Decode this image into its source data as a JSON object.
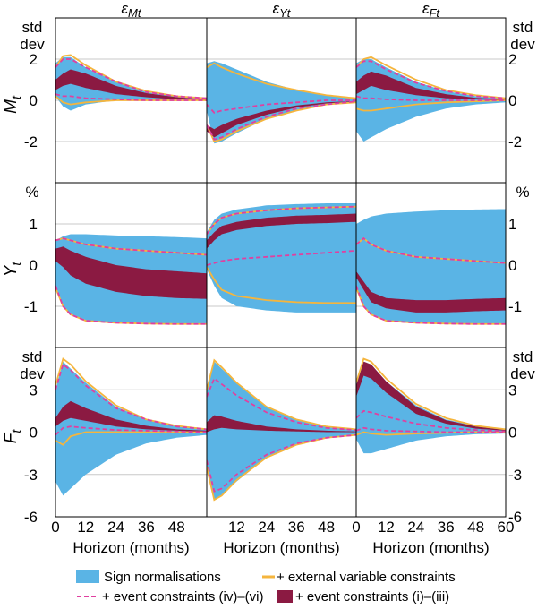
{
  "chart_data": {
    "type": "area",
    "columns": [
      {
        "key": "eM",
        "sym": "ε",
        "sub": "Mt"
      },
      {
        "key": "eY",
        "sym": "ε",
        "sub": "Yt"
      },
      {
        "key": "eF",
        "sym": "ε",
        "sub": "Ft"
      }
    ],
    "rows": [
      {
        "key": "M",
        "sym": "M",
        "sub": "t",
        "unit": [
          "std",
          "dev"
        ],
        "ylim": [
          -4,
          4
        ],
        "ticks": [
          -2,
          0,
          2
        ]
      },
      {
        "key": "Y",
        "sym": "Y",
        "sub": "t",
        "unit": [
          "%"
        ],
        "ylim": [
          -2,
          2
        ],
        "ticks": [
          -1,
          0,
          1
        ]
      },
      {
        "key": "F",
        "sym": "F",
        "sub": "t",
        "unit": [
          "std",
          "dev"
        ],
        "ylim": [
          -6,
          6
        ],
        "ticks": [
          -6,
          -3,
          0,
          3
        ]
      }
    ],
    "xlabel": "Horizon (months)",
    "xlim": [
      0,
      60
    ],
    "xticks": [
      {
        "labels": [
          "0",
          "12",
          "24",
          "36",
          "48"
        ]
      },
      {
        "labels": [
          "12",
          "24",
          "36",
          "48"
        ]
      },
      {
        "labels": [
          "0",
          "12",
          "24",
          "36",
          "48",
          "60"
        ]
      }
    ],
    "colors": {
      "sign": "#5ab4e5",
      "external": "#f5b53d",
      "event_iv_vi": "#e040a0",
      "event_i_iii": "#8b1a42",
      "grid": "#c8c8c8"
    },
    "legend": {
      "sign": "Sign normalisations",
      "external": "+ external variable constraints",
      "event_iv_vi": "+ event constraints (iv)–(vi)",
      "event_i_iii": "+ event constraints (i)–(iii)"
    },
    "series_keys": [
      "sign_lo",
      "sign_hi",
      "ext_lo",
      "ext_hi",
      "ev_lo",
      "ev_hi",
      "dark_lo",
      "dark_hi"
    ],
    "x_nodes": [
      0,
      3,
      6,
      12,
      24,
      36,
      48,
      60
    ],
    "panels": {
      "M_eM": {
        "sign_lo": [
          0.2,
          -0.3,
          -0.5,
          -0.2,
          0,
          0,
          0,
          0
        ],
        "sign_hi": [
          1.8,
          2.1,
          2.1,
          1.6,
          0.9,
          0.4,
          0.2,
          0.1
        ],
        "ext_lo": [
          0.2,
          -0.1,
          -0.2,
          -0.1,
          0,
          0,
          0,
          0
        ],
        "ext_hi": [
          1.6,
          2.15,
          2.2,
          1.7,
          0.9,
          0.45,
          0.2,
          0.1
        ],
        "ev_lo": [
          0.3,
          0.2,
          0.2,
          0.1,
          0.05,
          0,
          0,
          0
        ],
        "ev_hi": [
          1.6,
          2,
          2,
          1.6,
          0.9,
          0.4,
          0.2,
          0.1
        ],
        "dark_lo": [
          0.5,
          0.7,
          0.8,
          0.6,
          0.3,
          0.15,
          0.05,
          0
        ],
        "dark_hi": [
          1,
          1.3,
          1.5,
          1.3,
          0.7,
          0.35,
          0.15,
          0.05
        ]
      },
      "M_eY": {
        "sign_lo": [
          -0.5,
          -2.1,
          -2,
          -1.6,
          -0.9,
          -0.5,
          -0.2,
          -0.1
        ],
        "sign_hi": [
          1.8,
          1.9,
          1.8,
          1.5,
          0.9,
          0.5,
          0.25,
          0.1
        ],
        "ext_lo": [
          -1.2,
          -2,
          -1.9,
          -1.5,
          -0.9,
          -0.5,
          -0.2,
          -0.1
        ],
        "ext_hi": [
          1.6,
          1.8,
          1.6,
          1.3,
          0.8,
          0.5,
          0.25,
          0.1
        ],
        "ev_lo": [
          -1.2,
          -1.9,
          -1.8,
          -1.4,
          -0.8,
          -0.4,
          -0.2,
          -0.05
        ],
        "ev_hi": [
          -0.2,
          -0.6,
          -0.5,
          -0.4,
          -0.2,
          -0.1,
          0,
          0
        ],
        "dark_lo": [
          -1.5,
          -1.8,
          -1.6,
          -1.2,
          -0.7,
          -0.35,
          -0.15,
          -0.05
        ],
        "dark_hi": [
          -1.2,
          -1.4,
          -1.2,
          -0.9,
          -0.5,
          -0.25,
          -0.1,
          -0.03
        ]
      },
      "M_eF": {
        "sign_lo": [
          -1.5,
          -2,
          -1.8,
          -1.4,
          -0.8,
          -0.4,
          -0.2,
          -0.1
        ],
        "sign_hi": [
          1.8,
          2,
          2,
          1.6,
          0.9,
          0.45,
          0.2,
          0.1
        ],
        "ext_lo": [
          -0.4,
          -0.5,
          -0.5,
          -0.4,
          -0.2,
          -0.1,
          -0.05,
          0
        ],
        "ext_hi": [
          1.6,
          2,
          2.1,
          1.7,
          1,
          0.5,
          0.25,
          0.1
        ],
        "ev_lo": [
          0.2,
          0.1,
          0.1,
          0.05,
          0,
          0,
          0,
          0
        ],
        "ev_hi": [
          1.6,
          1.9,
          1.9,
          1.5,
          0.85,
          0.45,
          0.2,
          0.1
        ],
        "dark_lo": [
          0.3,
          0.5,
          0.7,
          0.5,
          0.25,
          0.1,
          0.05,
          0
        ],
        "dark_hi": [
          0.9,
          1.2,
          1.4,
          1.2,
          0.6,
          0.3,
          0.12,
          0.05
        ]
      },
      "Y_eM": {
        "sign_lo": [
          -0.5,
          -1,
          -1.2,
          -1.35,
          -1.4,
          -1.42,
          -1.43,
          -1.43
        ],
        "sign_hi": [
          0.6,
          0.7,
          0.75,
          0.75,
          0.72,
          0.7,
          0.68,
          0.65
        ],
        "ext_lo": [
          -0.55,
          -1,
          -1.2,
          -1.35,
          -1.4,
          -1.42,
          -1.43,
          -1.43
        ],
        "ext_hi": [
          0.6,
          0.65,
          0.6,
          0.5,
          0.4,
          0.35,
          0.3,
          0.25
        ],
        "ev_lo": [
          -0.5,
          -1,
          -1.2,
          -1.35,
          -1.4,
          -1.42,
          -1.43,
          -1.43
        ],
        "ev_hi": [
          0.6,
          0.65,
          0.6,
          0.5,
          0.4,
          0.35,
          0.3,
          0.25
        ],
        "dark_lo": [
          0.1,
          -0.05,
          -0.25,
          -0.45,
          -0.65,
          -0.75,
          -0.8,
          -0.82
        ],
        "dark_hi": [
          0.4,
          0.45,
          0.35,
          0.2,
          0,
          -0.1,
          -0.15,
          -0.2
        ]
      },
      "Y_eY": {
        "sign_lo": [
          -0.1,
          -0.5,
          -0.8,
          -1,
          -1.1,
          -1.15,
          -1.15,
          -1.15
        ],
        "sign_hi": [
          0.8,
          1.1,
          1.25,
          1.35,
          1.45,
          1.48,
          1.5,
          1.5
        ],
        "ext_lo": [
          -0.05,
          -0.35,
          -0.6,
          -0.75,
          -0.85,
          -0.9,
          -0.92,
          -0.92
        ],
        "ext_hi": [
          0.75,
          1,
          1.15,
          1.25,
          1.33,
          1.38,
          1.4,
          1.42
        ],
        "ev_lo": [
          0,
          0.05,
          0.1,
          0.15,
          0.2,
          0.25,
          0.3,
          0.35
        ],
        "ev_hi": [
          0.75,
          1,
          1.15,
          1.25,
          1.33,
          1.38,
          1.4,
          1.42
        ],
        "dark_lo": [
          0.4,
          0.6,
          0.75,
          0.85,
          0.95,
          1,
          1.02,
          1.05
        ],
        "dark_hi": [
          0.6,
          0.8,
          0.95,
          1.05,
          1.15,
          1.2,
          1.22,
          1.25
        ]
      },
      "Y_eF": {
        "sign_lo": [
          -0.5,
          -1,
          -1.2,
          -1.35,
          -1.4,
          -1.42,
          -1.43,
          -1.43
        ],
        "sign_hi": [
          1,
          1.1,
          1.18,
          1.25,
          1.3,
          1.33,
          1.35,
          1.36
        ],
        "ext_lo": [
          -0.55,
          -1,
          -1.2,
          -1.35,
          -1.4,
          -1.42,
          -1.43,
          -1.43
        ],
        "ext_hi": [
          0.5,
          0.65,
          0.5,
          0.35,
          0.2,
          0.15,
          0.1,
          0.05
        ],
        "ev_lo": [
          -0.5,
          -1,
          -1.2,
          -1.35,
          -1.4,
          -1.42,
          -1.43,
          -1.43
        ],
        "ev_hi": [
          0.5,
          0.65,
          0.5,
          0.35,
          0.2,
          0.15,
          0.1,
          0.05
        ],
        "dark_lo": [
          -0.3,
          -0.6,
          -0.9,
          -1.05,
          -1.15,
          -1.15,
          -1.12,
          -1.1
        ],
        "dark_hi": [
          -0.15,
          -0.4,
          -0.65,
          -0.8,
          -0.85,
          -0.85,
          -0.82,
          -0.8
        ]
      },
      "F_eM": {
        "sign_lo": [
          -3.5,
          -4.5,
          -4,
          -3,
          -1.6,
          -0.8,
          -0.4,
          -0.2
        ],
        "sign_hi": [
          3,
          5,
          4.5,
          3.5,
          1.8,
          0.9,
          0.4,
          0.2
        ],
        "ext_lo": [
          -0.6,
          -0.9,
          -0.3,
          0,
          0,
          0,
          0,
          0
        ],
        "ext_hi": [
          3.3,
          5.2,
          4.8,
          3.6,
          1.9,
          0.9,
          0.45,
          0.2
        ],
        "ev_lo": [
          -0.2,
          0.3,
          0.4,
          0.3,
          0.15,
          0.1,
          0.05,
          0
        ],
        "ev_hi": [
          3,
          4.8,
          4.4,
          3.3,
          1.7,
          0.9,
          0.4,
          0.2
        ],
        "dark_lo": [
          0.4,
          0.8,
          1,
          0.8,
          0.4,
          0.2,
          0.1,
          0
        ],
        "dark_hi": [
          1,
          1.8,
          2.2,
          1.7,
          0.9,
          0.45,
          0.2,
          0.1
        ]
      },
      "F_eY": {
        "sign_lo": [
          -2.5,
          -4.8,
          -4.5,
          -3.5,
          -1.8,
          -0.9,
          -0.4,
          -0.2
        ],
        "sign_hi": [
          3,
          5,
          4.5,
          3.5,
          1.8,
          0.9,
          0.4,
          0.2
        ],
        "ext_lo": [
          -2.5,
          -4.8,
          -4.5,
          -3.4,
          -1.8,
          -0.9,
          -0.4,
          -0.2
        ],
        "ext_hi": [
          3,
          5.1,
          4.6,
          3.5,
          1.8,
          0.9,
          0.4,
          0.2
        ],
        "ev_lo": [
          -2,
          -4.2,
          -4,
          -3,
          -1.6,
          -0.8,
          -0.4,
          -0.2
        ],
        "ev_hi": [
          2.5,
          3.8,
          3.4,
          2.6,
          1.4,
          0.7,
          0.3,
          0.15
        ],
        "dark_lo": [
          0,
          0.2,
          0.3,
          0.2,
          0.1,
          0.05,
          0,
          0
        ],
        "dark_hi": [
          0.7,
          1.2,
          1.1,
          0.8,
          0.4,
          0.2,
          0.1,
          0.05
        ]
      },
      "F_eF": {
        "sign_lo": [
          -0.5,
          -1.5,
          -1.5,
          -1.2,
          -0.6,
          -0.3,
          -0.15,
          -0.1
        ],
        "sign_hi": [
          3.5,
          5,
          4.8,
          3.6,
          1.9,
          0.9,
          0.45,
          0.2
        ],
        "ext_lo": [
          -0.2,
          0,
          -0.1,
          -0.2,
          -0.1,
          -0.05,
          0,
          0
        ],
        "ext_hi": [
          3.5,
          5.2,
          5,
          3.8,
          2,
          1,
          0.45,
          0.2
        ],
        "ev_lo": [
          0.1,
          0.3,
          0.2,
          0.1,
          0.05,
          0,
          0,
          0
        ],
        "ev_hi": [
          1,
          1.5,
          1.4,
          1.1,
          0.6,
          0.3,
          0.15,
          0.05
        ],
        "dark_lo": [
          2.5,
          4,
          3.8,
          2.8,
          1.3,
          0.6,
          0.25,
          0.1
        ],
        "dark_hi": [
          3.3,
          5,
          4.8,
          3.6,
          1.8,
          0.85,
          0.4,
          0.15
        ]
      }
    }
  }
}
